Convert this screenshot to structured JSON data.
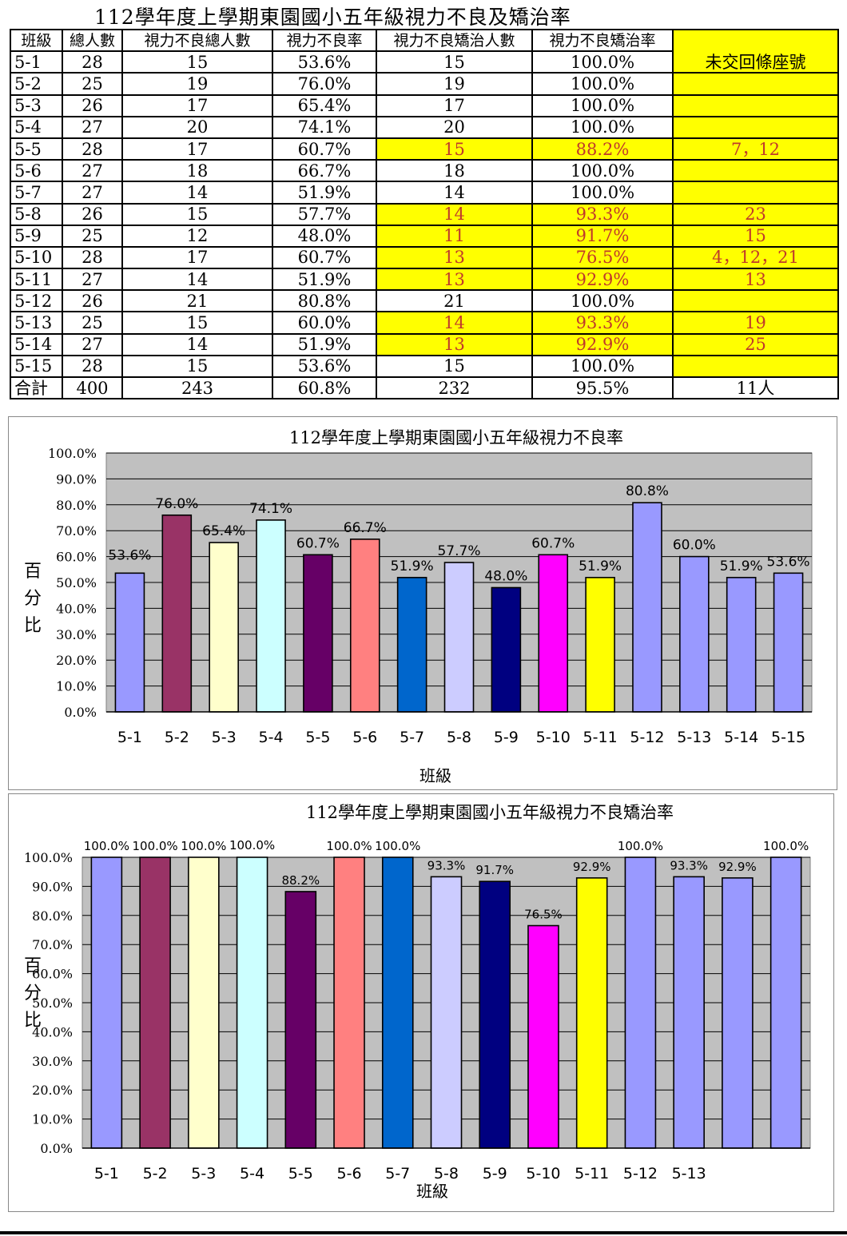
{
  "title": "112學年度上學期東園國小五年級視力不良及矯治率",
  "table": {
    "headers": [
      "班級",
      "總人數",
      "視力不良總人數",
      "視力不良率",
      "視力不良矯治人數",
      "視力不良矯治率",
      "未交回條座號"
    ],
    "rows": [
      {
        "cls": "5-1",
        "total": "28",
        "poor": "15",
        "poor_rate": "53.6%",
        "treated": "15",
        "treated_rate": "100.0%",
        "seats": "",
        "hl": false
      },
      {
        "cls": "5-2",
        "total": "25",
        "poor": "19",
        "poor_rate": "76.0%",
        "treated": "19",
        "treated_rate": "100.0%",
        "seats": "",
        "hl": false
      },
      {
        "cls": "5-3",
        "total": "26",
        "poor": "17",
        "poor_rate": "65.4%",
        "treated": "17",
        "treated_rate": "100.0%",
        "seats": "",
        "hl": false
      },
      {
        "cls": "5-4",
        "total": "27",
        "poor": "20",
        "poor_rate": "74.1%",
        "treated": "20",
        "treated_rate": "100.0%",
        "seats": "",
        "hl": false
      },
      {
        "cls": "5-5",
        "total": "28",
        "poor": "17",
        "poor_rate": "60.7%",
        "treated": "15",
        "treated_rate": "88.2%",
        "seats": "7，12",
        "hl": true
      },
      {
        "cls": "5-6",
        "total": "27",
        "poor": "18",
        "poor_rate": "66.7%",
        "treated": "18",
        "treated_rate": "100.0%",
        "seats": "",
        "hl": false
      },
      {
        "cls": "5-7",
        "total": "27",
        "poor": "14",
        "poor_rate": "51.9%",
        "treated": "14",
        "treated_rate": "100.0%",
        "seats": "",
        "hl": false
      },
      {
        "cls": "5-8",
        "total": "26",
        "poor": "15",
        "poor_rate": "57.7%",
        "treated": "14",
        "treated_rate": "93.3%",
        "seats": "23",
        "hl": true
      },
      {
        "cls": "5-9",
        "total": "25",
        "poor": "12",
        "poor_rate": "48.0%",
        "treated": "11",
        "treated_rate": "91.7%",
        "seats": "15",
        "hl": true
      },
      {
        "cls": "5-10",
        "total": "28",
        "poor": "17",
        "poor_rate": "60.7%",
        "treated": "13",
        "treated_rate": "76.5%",
        "seats": "4，12，21",
        "hl": true
      },
      {
        "cls": "5-11",
        "total": "27",
        "poor": "14",
        "poor_rate": "51.9%",
        "treated": "13",
        "treated_rate": "92.9%",
        "seats": "13",
        "hl": true
      },
      {
        "cls": "5-12",
        "total": "26",
        "poor": "21",
        "poor_rate": "80.8%",
        "treated": "21",
        "treated_rate": "100.0%",
        "seats": "",
        "hl": false
      },
      {
        "cls": "5-13",
        "total": "25",
        "poor": "15",
        "poor_rate": "60.0%",
        "treated": "14",
        "treated_rate": "93.3%",
        "seats": "19",
        "hl": true
      },
      {
        "cls": "5-14",
        "total": "27",
        "poor": "14",
        "poor_rate": "51.9%",
        "treated": "13",
        "treated_rate": "92.9%",
        "seats": "25",
        "hl": true
      },
      {
        "cls": "5-15",
        "total": "28",
        "poor": "15",
        "poor_rate": "53.6%",
        "treated": "15",
        "treated_rate": "100.0%",
        "seats": "",
        "hl": false
      }
    ],
    "total_row": {
      "cls": "合計",
      "total": "400",
      "poor": "243",
      "poor_rate": "60.8%",
      "treated": "232",
      "treated_rate": "95.5%",
      "seats": "11人"
    }
  },
  "chart_data": [
    {
      "type": "bar",
      "title": "112學年度上學期東園國小五年級視力不良率",
      "xlabel": "班級",
      "ylabel": "百分比",
      "ylim": [
        0,
        100
      ],
      "yticks": [
        "0.0%",
        "10.0%",
        "20.0%",
        "30.0%",
        "40.0%",
        "50.0%",
        "60.0%",
        "70.0%",
        "80.0%",
        "90.0%",
        "100.0%"
      ],
      "categories": [
        "5-1",
        "5-2",
        "5-3",
        "5-4",
        "5-5",
        "5-6",
        "5-7",
        "5-8",
        "5-9",
        "5-10",
        "5-11",
        "5-12",
        "5-13",
        "5-14",
        "5-15"
      ],
      "values": [
        53.6,
        76.0,
        65.4,
        74.1,
        60.7,
        66.7,
        51.9,
        57.7,
        48.0,
        60.7,
        51.9,
        80.8,
        60.0,
        51.9,
        53.6
      ],
      "labels": [
        "53.6%",
        "76.0%",
        "65.4%",
        "74.1%",
        "60.7%",
        "66.7%",
        "51.9%",
        "57.7%",
        "48.0%",
        "60.7%",
        "51.9%",
        "80.8%",
        "60.0%",
        "51.9%",
        "53.6%"
      ],
      "colors": [
        "#9999ff",
        "#993366",
        "#ffffcc",
        "#ccffff",
        "#660066",
        "#ff8080",
        "#0066cc",
        "#ccccff",
        "#000080",
        "#ff00ff",
        "#ffff00",
        "#9999ff",
        "#9999ff",
        "#9999ff",
        "#9999ff"
      ],
      "plot_bg": "#c0c0c0",
      "grid": true
    },
    {
      "type": "bar",
      "title": "112學年度上學期東園國小五年級視力不良矯治率",
      "xlabel": "班級",
      "ylabel": "百分比",
      "ylim": [
        0,
        100
      ],
      "yticks": [
        "0.0%",
        "10.0%",
        "20.0%",
        "30.0%",
        "40.0%",
        "50.0%",
        "60.0%",
        "70.0%",
        "80.0%",
        "90.0%",
        "100.0%"
      ],
      "categories": [
        "5-1",
        "5-2",
        "5-3",
        "5-4",
        "5-5",
        "5-6",
        "5-7",
        "5-8",
        "5-9",
        "5-10",
        "5-11",
        "5-12",
        "5-13",
        "",
        ""
      ],
      "values": [
        100.0,
        100.0,
        100.0,
        100.0,
        88.2,
        100.0,
        100.0,
        93.3,
        91.7,
        76.5,
        92.9,
        100.0,
        93.3,
        92.9,
        100.0
      ],
      "labels": [
        "100.0%",
        "100.0%",
        "100.0%",
        "100.0%",
        "88.2%",
        "100.0%",
        "100.0%",
        "93.3%",
        "91.7%",
        "76.5%",
        "92.9%",
        "100.0%",
        "93.3%",
        "92.9%",
        "100.0%"
      ],
      "colors": [
        "#9999ff",
        "#993366",
        "#ffffcc",
        "#ccffff",
        "#660066",
        "#ff8080",
        "#0066cc",
        "#ccccff",
        "#000080",
        "#ff00ff",
        "#ffff00",
        "#9999ff",
        "#9999ff",
        "#9999ff",
        "#9999ff"
      ],
      "plot_bg": "#c0c0c0",
      "grid": true
    }
  ]
}
